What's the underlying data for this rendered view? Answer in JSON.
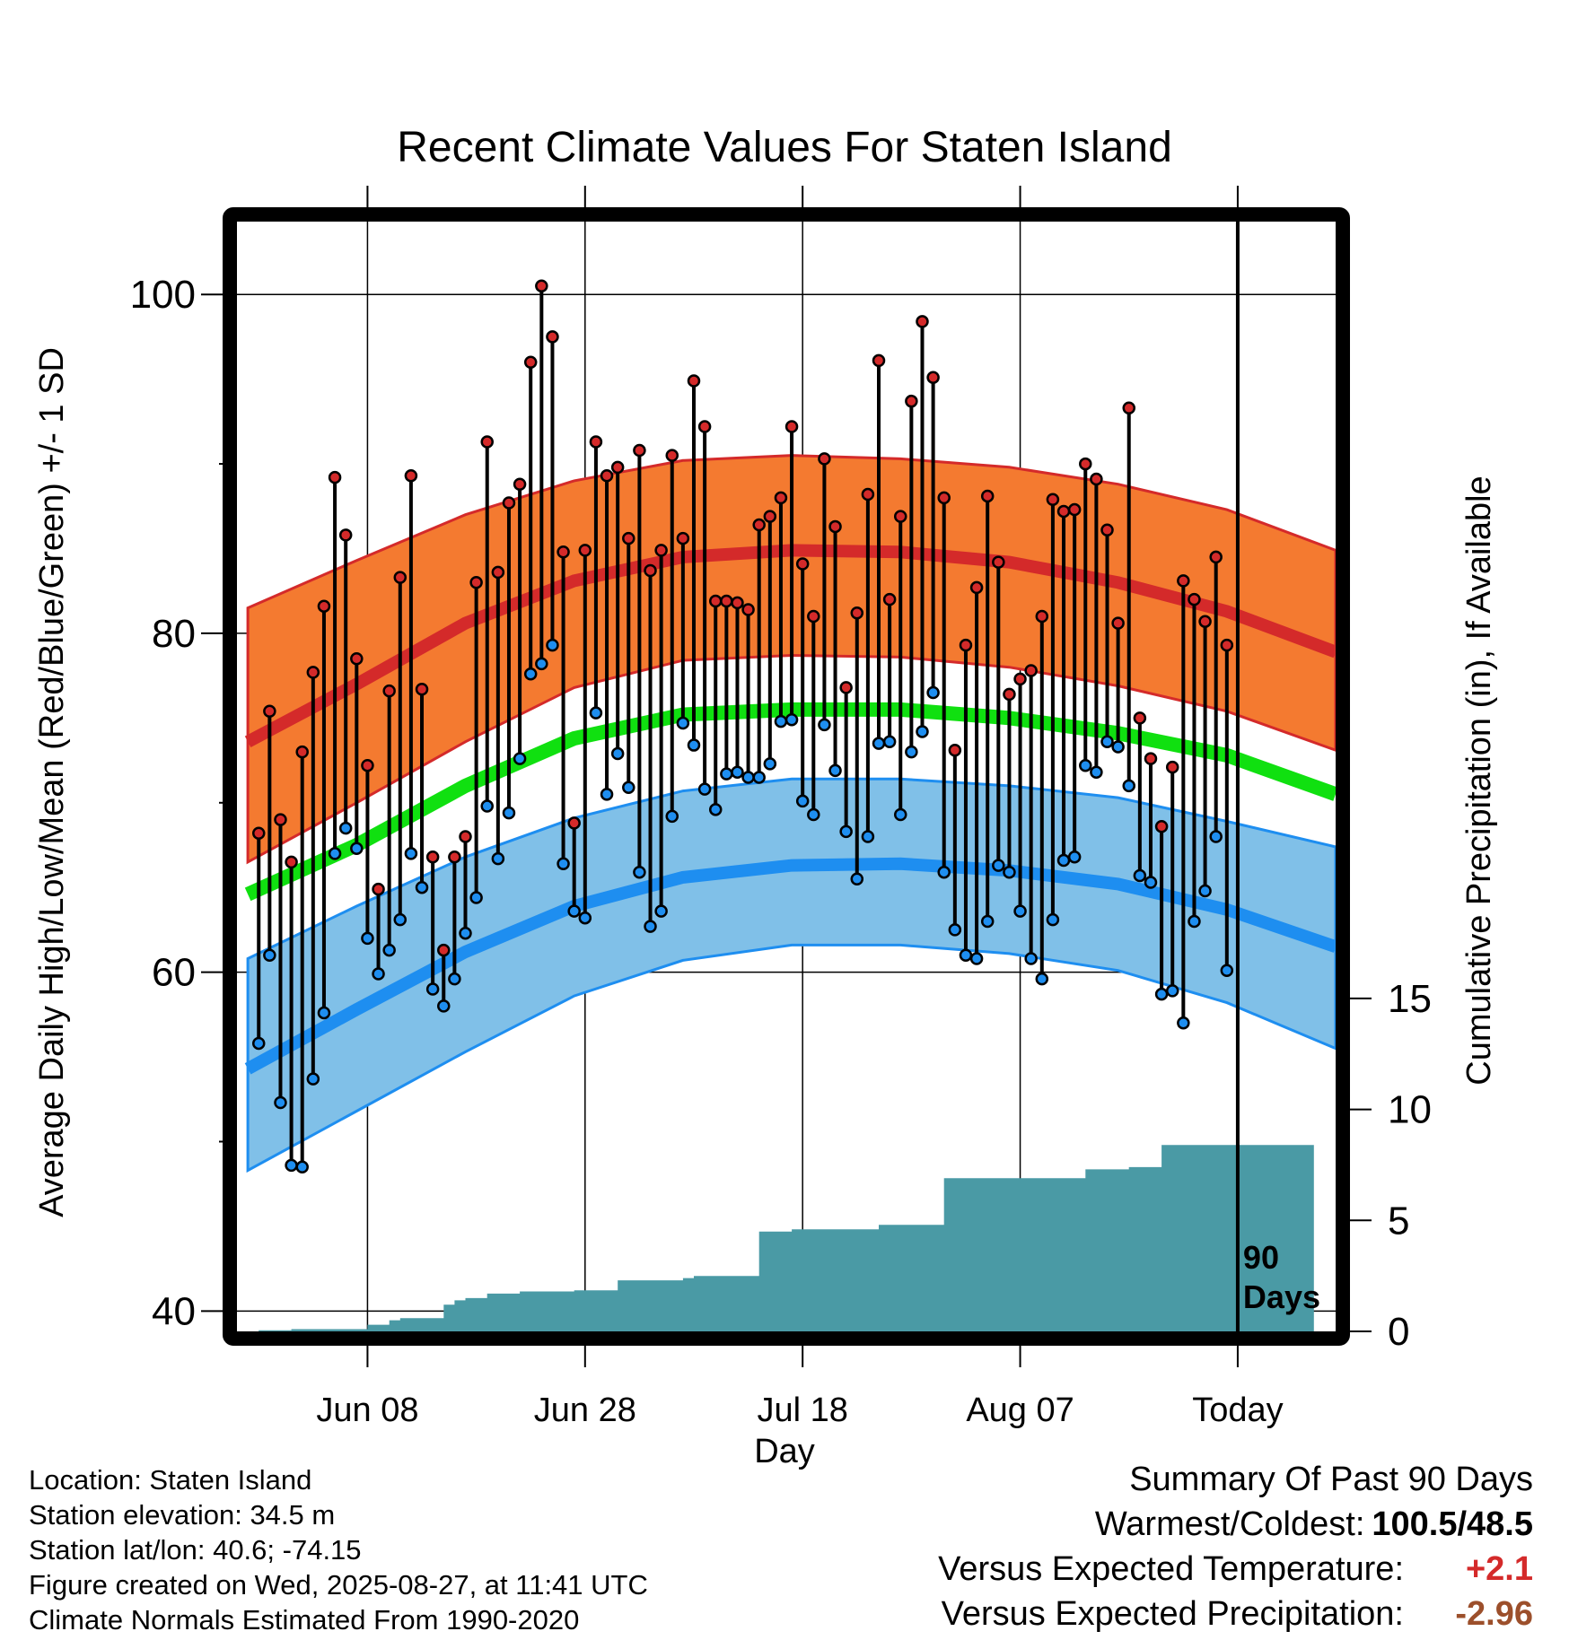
{
  "chart_data": {
    "type": "line",
    "title": "Recent Climate Values For Staten Island",
    "xlabel": "Day",
    "ylabel_left": "Average Daily High/Low/Mean (Red/Blue/Green) +/- 1 SD",
    "ylabel_right": "Cumulative Precipitation (in), If Available",
    "ylim_left": [
      38.8,
      104.3
    ],
    "ylim_right": [
      0,
      50
    ],
    "y_ticks_left": [
      40,
      60,
      80,
      100
    ],
    "y_ticks_right": [
      0,
      5,
      10,
      15
    ],
    "x_tick_labels": [
      "Jun 08",
      "Jun 28",
      "Jul 18",
      "Aug 07",
      "Today"
    ],
    "x_tick_days": [
      11,
      31,
      51,
      71,
      91
    ],
    "x_range_days": [
      -1,
      100
    ],
    "today_day": 91,
    "today_label": [
      "90",
      "Days"
    ],
    "grid": true,
    "colors": {
      "high_band": "#f47a30",
      "high_mean": "#d42a2a",
      "low_band": "#80c0e8",
      "low_mean": "#1e8ef0",
      "mean": "#10e010",
      "precip": "#4a9aa5",
      "high_point": "#d42a2a",
      "low_point": "#1e8ef0"
    },
    "normals": {
      "day": [
        0,
        10,
        20,
        30,
        40,
        50,
        60,
        70,
        80,
        90,
        100
      ],
      "high_mean": [
        73.6,
        77.0,
        80.6,
        83.1,
        84.5,
        84.9,
        84.8,
        84.2,
        83.0,
        81.3,
        78.9
      ],
      "high_upper": [
        81.5,
        84.3,
        87.0,
        89.0,
        90.2,
        90.5,
        90.3,
        89.8,
        88.8,
        87.3,
        84.9
      ],
      "high_lower": [
        66.5,
        70.0,
        73.6,
        76.8,
        78.4,
        78.7,
        78.6,
        78.0,
        76.9,
        75.4,
        73.1
      ],
      "mean": [
        64.6,
        67.5,
        71.0,
        73.8,
        75.2,
        75.5,
        75.5,
        75.0,
        74.1,
        72.8,
        70.5
      ],
      "low_mean": [
        54.3,
        57.8,
        61.2,
        63.9,
        65.6,
        66.3,
        66.4,
        66.0,
        65.2,
        63.7,
        61.5
      ],
      "low_upper": [
        60.8,
        63.9,
        66.8,
        69.1,
        70.7,
        71.4,
        71.4,
        71.0,
        70.3,
        68.9,
        67.4
      ],
      "low_lower": [
        48.3,
        51.8,
        55.3,
        58.6,
        60.7,
        61.6,
        61.6,
        61.1,
        60.1,
        58.2,
        55.5
      ]
    },
    "daily": {
      "day": [
        1,
        2,
        3,
        4,
        5,
        6,
        7,
        8,
        9,
        10,
        11,
        12,
        13,
        14,
        15,
        16,
        17,
        18,
        19,
        20,
        21,
        22,
        23,
        24,
        25,
        26,
        27,
        28,
        29,
        30,
        31,
        32,
        33,
        34,
        35,
        36,
        37,
        38,
        39,
        40,
        41,
        42,
        43,
        44,
        45,
        46,
        47,
        48,
        49,
        50,
        51,
        52,
        53,
        54,
        55,
        56,
        57,
        58,
        59,
        60,
        61,
        62,
        63,
        64,
        65,
        66,
        67,
        68,
        69,
        70,
        71,
        72,
        73,
        74,
        75,
        76,
        77,
        78,
        79,
        80,
        81,
        82,
        83,
        84,
        85,
        86,
        87,
        88,
        89,
        90
      ],
      "high": [
        68.2,
        75.4,
        69.0,
        66.5,
        73.0,
        77.7,
        81.6,
        89.2,
        85.8,
        78.5,
        72.2,
        64.9,
        76.6,
        83.3,
        89.3,
        76.7,
        66.8,
        61.3,
        66.8,
        68.0,
        83.0,
        91.3,
        83.6,
        87.7,
        88.8,
        96.0,
        100.5,
        97.5,
        84.8,
        68.8,
        84.9,
        91.3,
        89.3,
        89.8,
        85.6,
        90.8,
        83.7,
        84.9,
        90.5,
        85.6,
        94.9,
        92.2,
        81.9,
        81.9,
        81.8,
        81.4,
        86.4,
        86.9,
        88.0,
        92.2,
        84.1,
        81.0,
        90.3,
        86.3,
        76.8,
        81.2,
        88.2,
        96.1,
        82.0,
        86.9,
        93.7,
        98.4,
        95.1,
        88.0,
        73.1,
        79.3,
        82.7,
        88.1,
        84.2,
        76.4,
        77.3,
        77.8,
        81.0,
        87.9,
        87.2,
        87.3,
        90.0,
        89.1,
        86.1,
        80.6,
        93.3,
        75.0,
        72.6,
        68.6,
        72.1,
        83.1,
        82.0,
        80.7,
        84.5,
        79.3
      ],
      "low": [
        55.8,
        61.0,
        52.3,
        48.6,
        48.5,
        53.7,
        57.6,
        67.0,
        68.5,
        67.3,
        62.0,
        59.9,
        61.3,
        63.1,
        67.0,
        65.0,
        59.0,
        58.0,
        59.6,
        62.3,
        64.4,
        69.8,
        66.7,
        69.4,
        72.6,
        77.6,
        78.2,
        79.3,
        66.4,
        63.6,
        63.2,
        75.3,
        70.5,
        72.9,
        70.9,
        65.9,
        62.7,
        63.6,
        69.2,
        74.7,
        73.4,
        70.8,
        69.6,
        71.7,
        71.8,
        71.5,
        71.5,
        72.3,
        74.8,
        74.9,
        70.1,
        69.3,
        74.6,
        71.9,
        68.3,
        65.5,
        68.0,
        73.5,
        73.6,
        69.3,
        73.0,
        74.2,
        76.5,
        65.9,
        62.5,
        61.0,
        60.8,
        63.0,
        66.3,
        65.9,
        63.6,
        60.8,
        59.6,
        63.1,
        66.6,
        66.8,
        72.2,
        71.8,
        73.6,
        73.3,
        71.0,
        65.7,
        65.3,
        58.7,
        58.9,
        57.0,
        63.0,
        64.8,
        68.0,
        60.1
      ]
    },
    "precip_cumulative": {
      "day": [
        1,
        2,
        3,
        4,
        5,
        6,
        7,
        8,
        9,
        10,
        11,
        12,
        13,
        14,
        15,
        16,
        17,
        18,
        19,
        20,
        21,
        22,
        23,
        24,
        25,
        26,
        27,
        28,
        29,
        30,
        31,
        32,
        33,
        34,
        35,
        36,
        37,
        38,
        39,
        40,
        41,
        42,
        43,
        44,
        45,
        46,
        47,
        48,
        49,
        50,
        51,
        52,
        53,
        54,
        55,
        56,
        57,
        58,
        59,
        60,
        61,
        62,
        63,
        64,
        65,
        66,
        67,
        68,
        69,
        70,
        71,
        72,
        73,
        74,
        75,
        76,
        77,
        78,
        79,
        80,
        81,
        82,
        83,
        84,
        85,
        86,
        87,
        88,
        89,
        90,
        98
      ],
      "inches": [
        0.05,
        0.05,
        0.05,
        0.1,
        0.1,
        0.1,
        0.1,
        0.1,
        0.1,
        0.1,
        0.3,
        0.3,
        0.5,
        0.6,
        0.6,
        0.6,
        0.6,
        1.2,
        1.4,
        1.5,
        1.5,
        1.7,
        1.7,
        1.7,
        1.8,
        1.8,
        1.8,
        1.8,
        1.8,
        1.85,
        1.85,
        1.85,
        1.85,
        2.3,
        2.3,
        2.3,
        2.3,
        2.3,
        2.3,
        2.4,
        2.5,
        2.5,
        2.5,
        2.5,
        2.5,
        2.5,
        4.5,
        4.5,
        4.5,
        4.6,
        4.6,
        4.6,
        4.6,
        4.6,
        4.6,
        4.6,
        4.6,
        4.8,
        4.8,
        4.8,
        4.8,
        4.8,
        4.8,
        6.9,
        6.9,
        6.9,
        6.9,
        6.9,
        6.9,
        6.9,
        6.9,
        6.9,
        6.9,
        6.9,
        6.9,
        6.9,
        7.3,
        7.3,
        7.3,
        7.3,
        7.4,
        7.4,
        7.4,
        8.4,
        8.4,
        8.4,
        8.4,
        8.4,
        8.4,
        8.4,
        8.4
      ]
    }
  },
  "info": {
    "location": "Location: Staten Island",
    "elevation": "Station elevation: 34.5 m",
    "latlon": "Station lat/lon: 40.6; -74.15",
    "created": "Figure created on Wed, 2025-08-27, at 11:41 UTC",
    "normals": "Climate Normals Estimated From 1990-2020"
  },
  "summary": {
    "title": "Summary Of Past 90 Days",
    "warmest_coldest_label": "Warmest/Coldest:",
    "warmest_coldest_value": "100.5/48.5",
    "temp_label": "Versus Expected Temperature:",
    "temp_value": "+2.1",
    "precip_label": "Versus Expected Precipitation:",
    "precip_value": "-2.96"
  }
}
